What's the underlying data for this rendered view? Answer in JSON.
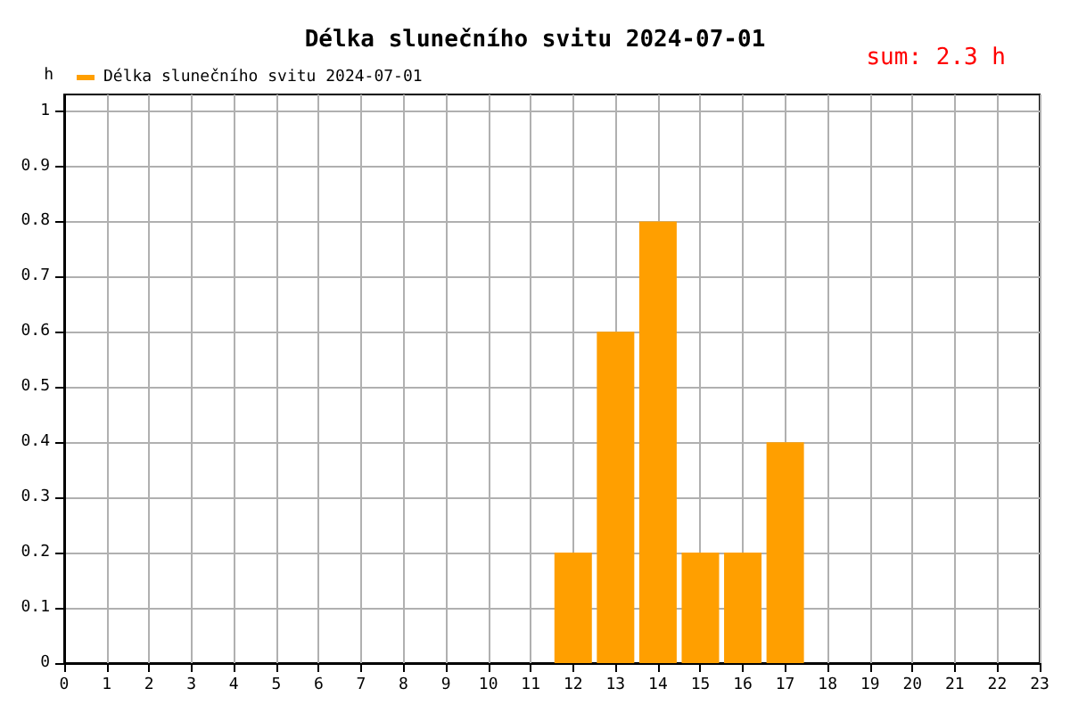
{
  "chart_data": {
    "type": "bar",
    "title": "Délka slunečního svitu 2024-07-01",
    "ylabel": "h",
    "annotations": [
      "sum: 2.3 h"
    ],
    "x": [
      12,
      13,
      14,
      15,
      16,
      17
    ],
    "series": [
      {
        "name": "Délka slunečního svitu 2024-07-01",
        "color": "#ff9f00",
        "values": [
          0.2,
          0.6,
          0.8,
          0.2,
          0.2,
          0.4
        ]
      }
    ],
    "xlim": [
      0,
      23
    ],
    "xticks": [
      0,
      1,
      2,
      3,
      4,
      5,
      6,
      7,
      8,
      9,
      10,
      11,
      12,
      13,
      14,
      15,
      16,
      17,
      18,
      19,
      20,
      21,
      22,
      23
    ],
    "ylim": [
      0,
      1.03
    ],
    "yticks": [
      0,
      0.1,
      0.2,
      0.3,
      0.4,
      0.5,
      0.6,
      0.7,
      0.8,
      0.9,
      1
    ],
    "grid": true,
    "legend": "top left"
  }
}
